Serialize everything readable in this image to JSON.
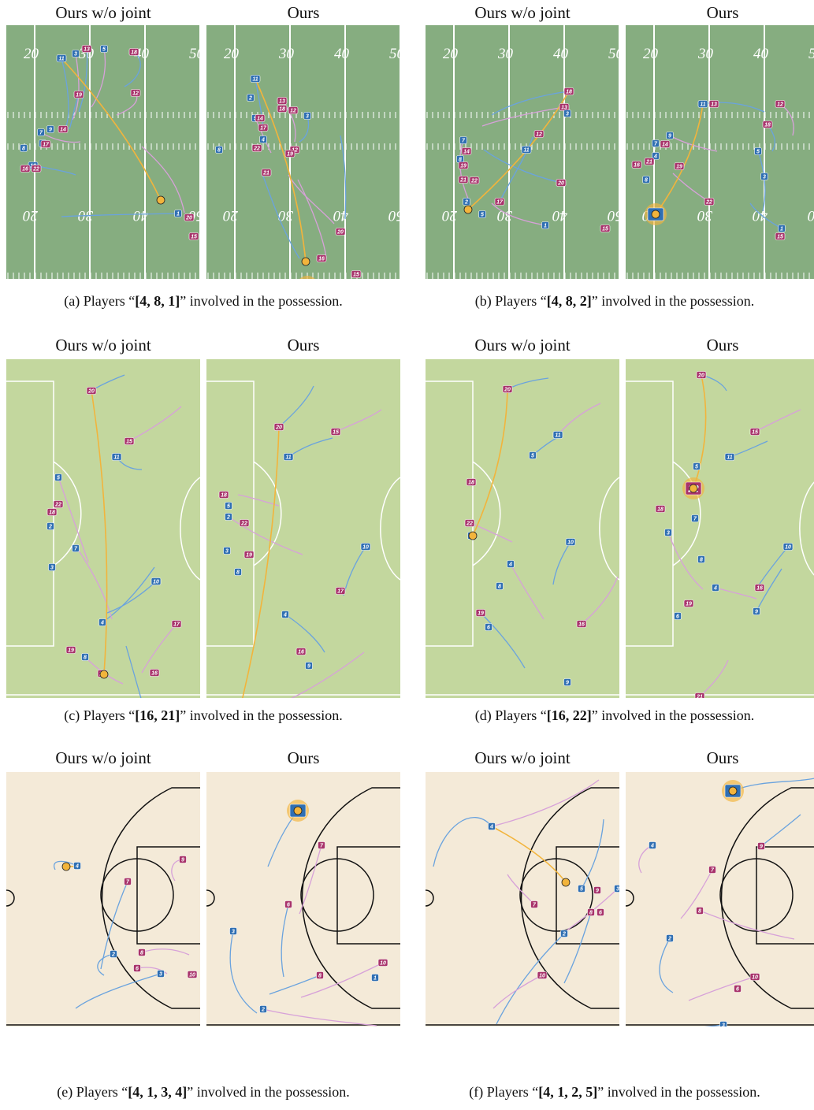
{
  "titles": {
    "without_joint": "Ours w/o joint",
    "ours": "Ours"
  },
  "colors": {
    "football_field": "#86ad80",
    "soccer_field": "#c3d79e",
    "basketball_court": "#f4ead8",
    "team_a": "#2f6fb3",
    "team_b": "#a8336b",
    "ball": "#f2b43c",
    "track_a": "#6aa3de",
    "track_b": "#d7a1d9"
  },
  "figures": [
    {
      "letter": "(a)",
      "sport": "football",
      "caption": {
        "prefix": "Players “",
        "players": "[4, 8, 1]",
        "suffix": "” involved in the possession."
      },
      "yard_top": [
        "20",
        "30",
        "40",
        "50"
      ],
      "yard_bottom": [
        "20",
        "30",
        "40",
        "50"
      ],
      "panels": [
        {
          "markers": [
            {
              "l": "11",
              "t": "a"
            },
            {
              "l": "3",
              "t": "a"
            },
            {
              "l": "13",
              "t": "b"
            },
            {
              "l": "5",
              "t": "a"
            },
            {
              "l": "18",
              "t": "b"
            },
            {
              "l": "12",
              "t": "b"
            },
            {
              "l": "19",
              "t": "b"
            },
            {
              "l": "9",
              "t": "a"
            },
            {
              "l": "14",
              "t": "b"
            },
            {
              "l": "7",
              "t": "a"
            },
            {
              "l": "4",
              "t": "a"
            },
            {
              "l": "17",
              "t": "b"
            },
            {
              "l": "8",
              "t": "a"
            },
            {
              "l": "10",
              "t": "a"
            },
            {
              "l": "16",
              "t": "b"
            },
            {
              "l": "22",
              "t": "b"
            },
            {
              "l": "20",
              "t": "b"
            },
            {
              "l": "1",
              "t": "a"
            },
            {
              "l": "15",
              "t": "b"
            }
          ]
        },
        {
          "markers": [
            {
              "l": "11",
              "t": "a"
            },
            {
              "l": "2",
              "t": "a"
            },
            {
              "l": "13",
              "t": "b"
            },
            {
              "l": "18",
              "t": "b"
            },
            {
              "l": "5",
              "t": "a"
            },
            {
              "l": "12",
              "t": "b"
            },
            {
              "l": "14",
              "t": "b"
            },
            {
              "l": "3",
              "t": "a"
            },
            {
              "l": "17",
              "t": "b"
            },
            {
              "l": "22",
              "t": "b"
            },
            {
              "l": "4",
              "t": "a"
            },
            {
              "l": "8",
              "t": "a"
            },
            {
              "l": "12",
              "t": "b"
            },
            {
              "l": "19",
              "t": "b"
            },
            {
              "l": "21",
              "t": "b"
            },
            {
              "l": "20",
              "t": "b"
            },
            {
              "l": "16",
              "t": "b"
            },
            {
              "l": "15",
              "t": "b"
            },
            {
              "l": "1",
              "t": "a"
            }
          ]
        }
      ]
    },
    {
      "letter": "(b)",
      "sport": "football",
      "caption": {
        "prefix": "Players “",
        "players": "[4, 8, 2]",
        "suffix": "” involved in the possession."
      },
      "yard_top": [
        "20",
        "30",
        "40",
        "50"
      ],
      "yard_bottom": [
        "20",
        "30",
        "40",
        "50"
      ],
      "panels": [
        {
          "markers": [
            {
              "l": "18",
              "t": "b"
            },
            {
              "l": "13",
              "t": "b"
            },
            {
              "l": "3",
              "t": "a"
            },
            {
              "l": "12",
              "t": "b"
            },
            {
              "l": "7",
              "t": "a"
            },
            {
              "l": "14",
              "t": "b"
            },
            {
              "l": "11",
              "t": "a"
            },
            {
              "l": "8",
              "t": "a"
            },
            {
              "l": "19",
              "t": "b"
            },
            {
              "l": "21",
              "t": "b"
            },
            {
              "l": "22",
              "t": "b"
            },
            {
              "l": "20",
              "t": "b"
            },
            {
              "l": "2",
              "t": "a"
            },
            {
              "l": "5",
              "t": "a"
            },
            {
              "l": "17",
              "t": "b"
            },
            {
              "l": "1",
              "t": "a"
            },
            {
              "l": "15",
              "t": "b"
            }
          ]
        },
        {
          "markers": [
            {
              "l": "11",
              "t": "a"
            },
            {
              "l": "13",
              "t": "b"
            },
            {
              "l": "12",
              "t": "b"
            },
            {
              "l": "18",
              "t": "b"
            },
            {
              "l": "9",
              "t": "a"
            },
            {
              "l": "7",
              "t": "a"
            },
            {
              "l": "14",
              "t": "b"
            },
            {
              "l": "4",
              "t": "a"
            },
            {
              "l": "21",
              "t": "b"
            },
            {
              "l": "16",
              "t": "b"
            },
            {
              "l": "19",
              "t": "b"
            },
            {
              "l": "8",
              "t": "a"
            },
            {
              "l": "5",
              "t": "a"
            },
            {
              "l": "3",
              "t": "a"
            },
            {
              "l": "22",
              "t": "b"
            },
            {
              "l": "2",
              "t": "a"
            },
            {
              "l": "1",
              "t": "a"
            },
            {
              "l": "15",
              "t": "b"
            }
          ]
        }
      ]
    },
    {
      "letter": "(c)",
      "sport": "soccer",
      "caption": {
        "prefix": "Players “",
        "players": "[16, 21]",
        "suffix": "” involved in the possession."
      },
      "panels": [
        {
          "markers": [
            {
              "l": "20",
              "t": "b"
            },
            {
              "l": "15",
              "t": "b"
            },
            {
              "l": "11",
              "t": "a"
            },
            {
              "l": "5",
              "t": "a"
            },
            {
              "l": "22",
              "t": "b"
            },
            {
              "l": "18",
              "t": "b"
            },
            {
              "l": "2",
              "t": "a"
            },
            {
              "l": "7",
              "t": "a"
            },
            {
              "l": "3",
              "t": "a"
            },
            {
              "l": "10",
              "t": "a"
            },
            {
              "l": "4",
              "t": "a"
            },
            {
              "l": "17",
              "t": "b"
            },
            {
              "l": "19",
              "t": "b"
            },
            {
              "l": "8",
              "t": "a"
            },
            {
              "l": "21",
              "t": "b"
            },
            {
              "l": "16",
              "t": "b"
            },
            {
              "l": "9",
              "t": "a"
            }
          ]
        },
        {
          "markers": [
            {
              "l": "20",
              "t": "b"
            },
            {
              "l": "15",
              "t": "b"
            },
            {
              "l": "11",
              "t": "a"
            },
            {
              "l": "18",
              "t": "b"
            },
            {
              "l": "5",
              "t": "a"
            },
            {
              "l": "2",
              "t": "a"
            },
            {
              "l": "22",
              "t": "b"
            },
            {
              "l": "3",
              "t": "a"
            },
            {
              "l": "19",
              "t": "b"
            },
            {
              "l": "10",
              "t": "a"
            },
            {
              "l": "8",
              "t": "a"
            },
            {
              "l": "17",
              "t": "b"
            },
            {
              "l": "4",
              "t": "a"
            },
            {
              "l": "16",
              "t": "b"
            },
            {
              "l": "9",
              "t": "a"
            },
            {
              "l": "21",
              "t": "b"
            }
          ]
        }
      ]
    },
    {
      "letter": "(d)",
      "sport": "soccer",
      "caption": {
        "prefix": "Players “",
        "players": "[16, 22]",
        "suffix": "” involved in the possession."
      },
      "panels": [
        {
          "markers": [
            {
              "l": "20",
              "t": "b"
            },
            {
              "l": "11",
              "t": "a"
            },
            {
              "l": "5",
              "t": "a"
            },
            {
              "l": "18",
              "t": "b"
            },
            {
              "l": "22",
              "t": "b"
            },
            {
              "l": "3",
              "t": "a"
            },
            {
              "l": "10",
              "t": "a"
            },
            {
              "l": "4",
              "t": "a"
            },
            {
              "l": "8",
              "t": "a"
            },
            {
              "l": "19",
              "t": "b"
            },
            {
              "l": "6",
              "t": "a"
            },
            {
              "l": "16",
              "t": "b"
            },
            {
              "l": "9",
              "t": "a"
            },
            {
              "l": "21",
              "t": "b"
            }
          ]
        },
        {
          "markers": [
            {
              "l": "20",
              "t": "b"
            },
            {
              "l": "15",
              "t": "b"
            },
            {
              "l": "11",
              "t": "a"
            },
            {
              "l": "5",
              "t": "a"
            },
            {
              "l": "22",
              "t": "b"
            },
            {
              "l": "18",
              "t": "b"
            },
            {
              "l": "7",
              "t": "a"
            },
            {
              "l": "3",
              "t": "a"
            },
            {
              "l": "10",
              "t": "a"
            },
            {
              "l": "8",
              "t": "a"
            },
            {
              "l": "4",
              "t": "a"
            },
            {
              "l": "16",
              "t": "b"
            },
            {
              "l": "19",
              "t": "b"
            },
            {
              "l": "9",
              "t": "a"
            },
            {
              "l": "6",
              "t": "a"
            },
            {
              "l": "21",
              "t": "b"
            }
          ]
        }
      ]
    },
    {
      "letter": "(e)",
      "sport": "basketball",
      "caption": {
        "prefix": "Players “",
        "players": "[4, 1, 3, 4]",
        "suffix": "” involved in the possession."
      },
      "panels": [
        {
          "markers": [
            {
              "l": "4",
              "t": "a"
            },
            {
              "l": "9",
              "t": "b"
            },
            {
              "l": "7",
              "t": "b"
            },
            {
              "l": "8",
              "t": "b"
            },
            {
              "l": "2",
              "t": "a"
            },
            {
              "l": "6",
              "t": "b"
            },
            {
              "l": "3",
              "t": "a"
            },
            {
              "l": "10",
              "t": "b"
            }
          ]
        },
        {
          "markers": [
            {
              "l": "4",
              "t": "a"
            },
            {
              "l": "7",
              "t": "b"
            },
            {
              "l": "6",
              "t": "b"
            },
            {
              "l": "3",
              "t": "a"
            },
            {
              "l": "10",
              "t": "b"
            },
            {
              "l": "8",
              "t": "b"
            },
            {
              "l": "1",
              "t": "a"
            },
            {
              "l": "2",
              "t": "a"
            }
          ]
        }
      ]
    },
    {
      "letter": "(f)",
      "sport": "basketball",
      "caption": {
        "prefix": "Players “",
        "players": "[4, 1, 2, 5]",
        "suffix": "” involved in the possession."
      },
      "panels": [
        {
          "markers": [
            {
              "l": "4",
              "t": "a"
            },
            {
              "l": "5",
              "t": "a"
            },
            {
              "l": "9",
              "t": "b"
            },
            {
              "l": "3",
              "t": "a"
            },
            {
              "l": "7",
              "t": "b"
            },
            {
              "l": "8",
              "t": "b"
            },
            {
              "l": "6",
              "t": "b"
            },
            {
              "l": "2",
              "t": "a"
            },
            {
              "l": "10",
              "t": "b"
            },
            {
              "l": "1",
              "t": "a"
            }
          ]
        },
        {
          "markers": [
            {
              "l": "5",
              "t": "a"
            },
            {
              "l": "4",
              "t": "a"
            },
            {
              "l": "9",
              "t": "b"
            },
            {
              "l": "7",
              "t": "b"
            },
            {
              "l": "8",
              "t": "b"
            },
            {
              "l": "2",
              "t": "a"
            },
            {
              "l": "10",
              "t": "b"
            },
            {
              "l": "6",
              "t": "b"
            },
            {
              "l": "3",
              "t": "a"
            }
          ]
        }
      ]
    }
  ]
}
